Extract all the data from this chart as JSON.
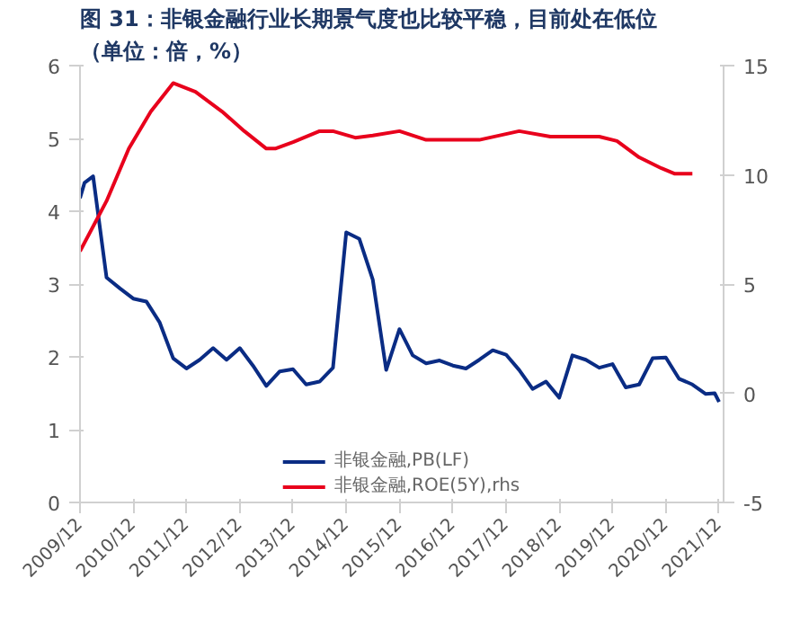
{
  "chart_data": {
    "type": "line",
    "title": "图 31：非银金融行业长期景气度也比较平稳，目前处在低位",
    "subtitle": "（单位：倍，%）",
    "xlim": [
      "2009-12",
      "2022-01"
    ],
    "xticks": [
      {
        "value": "2009-12",
        "label": "2009/12"
      },
      {
        "value": "2010-12",
        "label": "2010/12"
      },
      {
        "value": "2011-12",
        "label": "2011/12"
      },
      {
        "value": "2012-12",
        "label": "2012/12"
      },
      {
        "value": "2013-12",
        "label": "2013/12"
      },
      {
        "value": "2014-12",
        "label": "2014/12"
      },
      {
        "value": "2015-12",
        "label": "2015/12"
      },
      {
        "value": "2016-12",
        "label": "2016/12"
      },
      {
        "value": "2017-12",
        "label": "2017/12"
      },
      {
        "value": "2018-12",
        "label": "2018/12"
      },
      {
        "value": "2019-12",
        "label": "2019/12"
      },
      {
        "value": "2020-12",
        "label": "2020/12"
      },
      {
        "value": "2021-12",
        "label": "2021/12"
      }
    ],
    "ylim": [
      0,
      6
    ],
    "yticks": [
      0,
      1,
      2,
      3,
      4,
      5,
      6
    ],
    "y2lim": [
      -5,
      15
    ],
    "y2ticks": [
      -5,
      0,
      5,
      10,
      15
    ],
    "grid": false,
    "legend": "bottom",
    "series": [
      {
        "name": "非银金融,PB(LF)",
        "color": "#0a2c84",
        "x": [
          "2009-12",
          "2010-01",
          "2010-03",
          "2010-06",
          "2010-09",
          "2010-12",
          "2011-03",
          "2011-06",
          "2011-09",
          "2011-12",
          "2012-03",
          "2012-06",
          "2012-09",
          "2012-12",
          "2013-03",
          "2013-06",
          "2013-09",
          "2013-12",
          "2014-03",
          "2014-06",
          "2014-09",
          "2014-12",
          "2015-03",
          "2015-06",
          "2015-09",
          "2015-12",
          "2016-03",
          "2016-06",
          "2016-09",
          "2016-12",
          "2017-03",
          "2017-06",
          "2017-09",
          "2017-12",
          "2018-03",
          "2018-06",
          "2018-09",
          "2018-12",
          "2019-03",
          "2019-06",
          "2019-09",
          "2019-12",
          "2020-03",
          "2020-06",
          "2020-09",
          "2020-12",
          "2021-03",
          "2021-06",
          "2021-09",
          "2021-11",
          "2021-12"
        ],
        "values": [
          4.18,
          4.39,
          4.48,
          3.09,
          2.94,
          2.8,
          2.76,
          2.47,
          1.98,
          1.84,
          1.96,
          2.12,
          1.96,
          2.12,
          1.88,
          1.6,
          1.8,
          1.83,
          1.62,
          1.66,
          1.85,
          3.71,
          3.62,
          3.06,
          1.82,
          2.38,
          2.02,
          1.91,
          1.95,
          1.88,
          1.84,
          1.96,
          2.09,
          2.03,
          1.82,
          1.56,
          1.66,
          1.44,
          2.02,
          1.96,
          1.85,
          1.9,
          1.58,
          1.62,
          1.98,
          1.99,
          1.7,
          1.62,
          1.49,
          1.5,
          1.38
        ]
      },
      {
        "name": "非银金融,ROE(5Y),rhs",
        "color": "#e8001c",
        "axis": "y2",
        "x": [
          "2009-12",
          "2010-06",
          "2010-11",
          "2011-04",
          "2011-09",
          "2012-02",
          "2012-08",
          "2013-01",
          "2013-06",
          "2013-08",
          "2013-12",
          "2014-06",
          "2014-09",
          "2015-02",
          "2015-06",
          "2015-12",
          "2016-06",
          "2016-12",
          "2017-06",
          "2018-03",
          "2018-10",
          "2019-09",
          "2020-01",
          "2020-06",
          "2020-11",
          "2021-02",
          "2021-06"
        ],
        "values": [
          6.5,
          8.8,
          11.2,
          12.9,
          14.2,
          13.8,
          12.9,
          12.0,
          11.2,
          11.2,
          11.5,
          12.0,
          12.0,
          11.7,
          11.8,
          12.0,
          11.6,
          11.6,
          11.6,
          12.0,
          11.75,
          11.75,
          11.55,
          10.8,
          10.3,
          10.05,
          10.05
        ]
      }
    ]
  }
}
